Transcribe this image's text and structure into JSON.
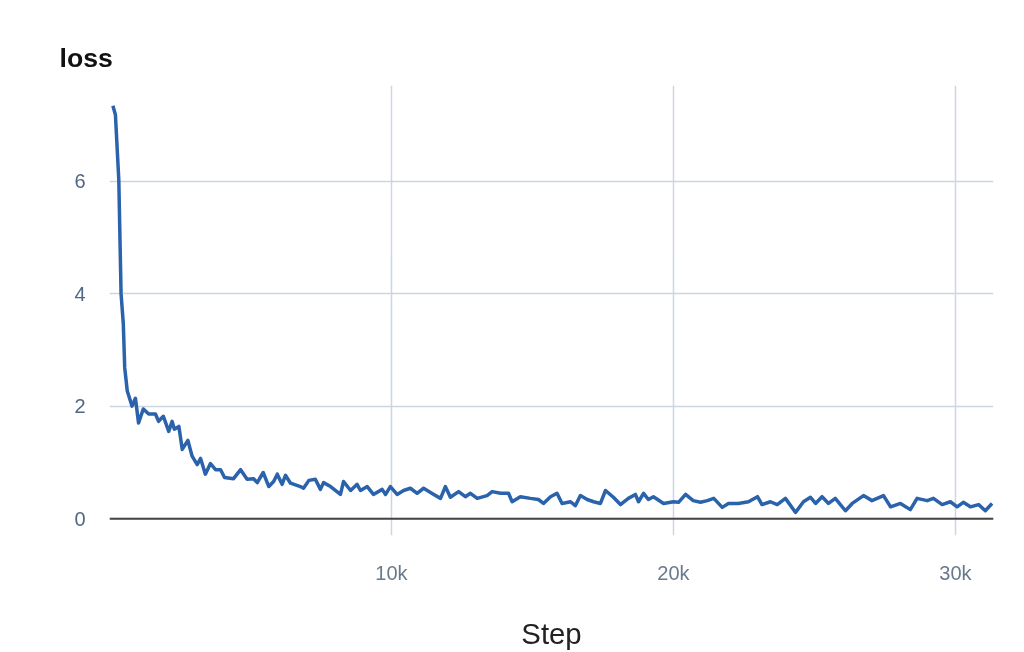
{
  "chart_data": {
    "type": "line",
    "title": "loss",
    "xlabel": "Step",
    "xlim": [
      0,
      31350
    ],
    "ylim": [
      -0.3,
      7.7
    ],
    "xticks": [
      {
        "value": 10000,
        "label": "10k"
      },
      {
        "value": 20000,
        "label": "20k"
      },
      {
        "value": 30000,
        "label": "30k"
      }
    ],
    "yticks": [
      0,
      2,
      4,
      6
    ],
    "grid": true,
    "line_style": "solid",
    "marker": "none",
    "series": [
      {
        "color": "#2a62ab",
        "x": [
          120,
          210,
          330,
          410,
          490,
          540,
          630,
          800,
          920,
          1030,
          1200,
          1390,
          1630,
          1740,
          1910,
          2100,
          2220,
          2300,
          2460,
          2580,
          2780,
          2930,
          3110,
          3230,
          3400,
          3580,
          3760,
          3940,
          4080,
          4400,
          4650,
          4880,
          5110,
          5240,
          5450,
          5650,
          5820,
          5950,
          6120,
          6240,
          6420,
          6770,
          6880,
          7070,
          7300,
          7480,
          7590,
          7840,
          8190,
          8300,
          8550,
          8780,
          8900,
          9140,
          9360,
          9670,
          9790,
          9960,
          10200,
          10430,
          10670,
          10910,
          11140,
          11500,
          11740,
          11910,
          12090,
          12380,
          12620,
          12800,
          13040,
          13390,
          13570,
          13870,
          14150,
          14280,
          14570,
          14930,
          15210,
          15390,
          15640,
          15870,
          16050,
          16350,
          16520,
          16700,
          16940,
          17170,
          17410,
          17590,
          17870,
          18120,
          18400,
          18650,
          18760,
          18940,
          19110,
          19290,
          19650,
          20000,
          20180,
          20430,
          20700,
          20960,
          21200,
          21430,
          21730,
          21950,
          22300,
          22660,
          22980,
          23140,
          23440,
          23680,
          23970,
          24330,
          24610,
          24860,
          25040,
          25270,
          25500,
          25740,
          26100,
          26340,
          26740,
          27040,
          27450,
          27700,
          28050,
          28400,
          28640,
          29000,
          29220,
          29530,
          29820,
          30060,
          30280,
          30530,
          30820,
          31060,
          31300
        ],
        "values": [
          7.34,
          7.18,
          6.02,
          4.0,
          3.46,
          2.68,
          2.27,
          2.0,
          2.14,
          1.7,
          1.95,
          1.86,
          1.86,
          1.73,
          1.82,
          1.55,
          1.73,
          1.59,
          1.64,
          1.23,
          1.39,
          1.11,
          0.96,
          1.07,
          0.79,
          0.98,
          0.87,
          0.87,
          0.73,
          0.71,
          0.87,
          0.7,
          0.71,
          0.64,
          0.82,
          0.57,
          0.66,
          0.79,
          0.61,
          0.77,
          0.63,
          0.57,
          0.54,
          0.68,
          0.7,
          0.52,
          0.64,
          0.57,
          0.43,
          0.66,
          0.5,
          0.61,
          0.5,
          0.57,
          0.43,
          0.52,
          0.43,
          0.57,
          0.43,
          0.5,
          0.54,
          0.45,
          0.54,
          0.43,
          0.36,
          0.57,
          0.38,
          0.48,
          0.39,
          0.45,
          0.36,
          0.41,
          0.48,
          0.45,
          0.45,
          0.3,
          0.39,
          0.36,
          0.34,
          0.27,
          0.39,
          0.45,
          0.27,
          0.3,
          0.23,
          0.41,
          0.34,
          0.3,
          0.27,
          0.5,
          0.38,
          0.25,
          0.36,
          0.43,
          0.3,
          0.45,
          0.34,
          0.39,
          0.27,
          0.3,
          0.29,
          0.43,
          0.32,
          0.29,
          0.32,
          0.36,
          0.2,
          0.27,
          0.27,
          0.3,
          0.39,
          0.25,
          0.3,
          0.25,
          0.36,
          0.11,
          0.3,
          0.38,
          0.27,
          0.39,
          0.27,
          0.36,
          0.14,
          0.27,
          0.41,
          0.32,
          0.41,
          0.21,
          0.27,
          0.16,
          0.36,
          0.32,
          0.36,
          0.25,
          0.3,
          0.21,
          0.29,
          0.21,
          0.25,
          0.14,
          0.27
        ]
      }
    ]
  }
}
